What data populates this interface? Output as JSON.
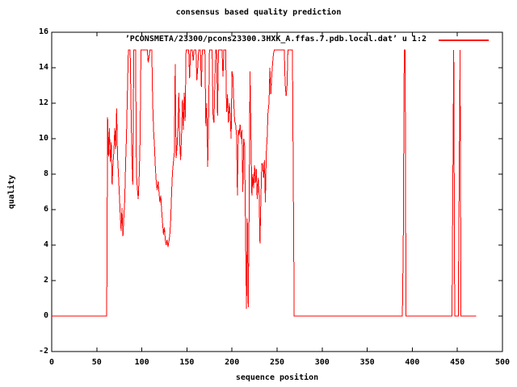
{
  "title": "consensus based quality prediction",
  "legend": {
    "entry": "’PCONSMETA/23300/pcons23300.3HXK_A.ffas.7.pdb.local.dat’ u 1:2",
    "line_color": "#ff0000",
    "position": "top-right-inside"
  },
  "x_axis": {
    "label": "sequence position",
    "min": 0,
    "max": 500,
    "ticks": [
      0,
      50,
      100,
      150,
      200,
      250,
      300,
      350,
      400,
      450,
      500
    ]
  },
  "y_axis": {
    "label": "quality",
    "min": -2,
    "max": 16,
    "ticks": [
      -2,
      0,
      2,
      4,
      6,
      8,
      10,
      12,
      14,
      16
    ]
  },
  "colors": {
    "series": "#ff0000",
    "axis": "#000000",
    "background": "#ffffff",
    "text": "#000000"
  },
  "chart_data": {
    "type": "line",
    "title": "consensus based quality prediction",
    "xlabel": "sequence position",
    "ylabel": "quality",
    "xlim": [
      0,
      500
    ],
    "ylim": [
      -2,
      16
    ],
    "grid": false,
    "legend_position": "top-right-inside",
    "series": [
      {
        "name": "’PCONSMETA/23300/pcons23300.3HXK_A.ffas.7.pdb.local.dat’ u 1:2",
        "color": "#ff0000",
        "points": [
          [
            0,
            0
          ],
          [
            61,
            0
          ],
          [
            62,
            11.2
          ],
          [
            63,
            9
          ],
          [
            64,
            10.6
          ],
          [
            65,
            8.7
          ],
          [
            66,
            9.8
          ],
          [
            67,
            7.4
          ],
          [
            68,
            8.6
          ],
          [
            69,
            9.3
          ],
          [
            70,
            10.6
          ],
          [
            71,
            9.4
          ],
          [
            72,
            11.7
          ],
          [
            73,
            9
          ],
          [
            74,
            8
          ],
          [
            75,
            6.9
          ],
          [
            76,
            5.8
          ],
          [
            77,
            4.8
          ],
          [
            78,
            6.1
          ],
          [
            79,
            4.5
          ],
          [
            80,
            5.6
          ],
          [
            81,
            6.5
          ],
          [
            82,
            8.6
          ],
          [
            83,
            10.2
          ],
          [
            84,
            12.6
          ],
          [
            85,
            15
          ],
          [
            86,
            15
          ],
          [
            87,
            15
          ],
          [
            88,
            11.8
          ],
          [
            89,
            8.9
          ],
          [
            90,
            7.4
          ],
          [
            91,
            15
          ],
          [
            92,
            15
          ],
          [
            93,
            15
          ],
          [
            94,
            8
          ],
          [
            95,
            7.2
          ],
          [
            96,
            6.6
          ],
          [
            97,
            7.9
          ],
          [
            98,
            9.9
          ],
          [
            99,
            15
          ],
          [
            100,
            15
          ],
          [
            101,
            15
          ],
          [
            102,
            15
          ],
          [
            103,
            15
          ],
          [
            104,
            15
          ],
          [
            105,
            15
          ],
          [
            106,
            15
          ],
          [
            107,
            14.3
          ],
          [
            108,
            14.6
          ],
          [
            109,
            15
          ],
          [
            110,
            15
          ],
          [
            111,
            15
          ],
          [
            112,
            12
          ],
          [
            113,
            10.5
          ],
          [
            114,
            9.6
          ],
          [
            115,
            8.4
          ],
          [
            116,
            7.5
          ],
          [
            117,
            7.1
          ],
          [
            118,
            7.6
          ],
          [
            119,
            7
          ],
          [
            120,
            6.4
          ],
          [
            121,
            6.8
          ],
          [
            122,
            5.9
          ],
          [
            123,
            5.2
          ],
          [
            124,
            4.6
          ],
          [
            125,
            5
          ],
          [
            126,
            4.3
          ],
          [
            127,
            4
          ],
          [
            128,
            4.3
          ],
          [
            129,
            3.9
          ],
          [
            130,
            4.2
          ],
          [
            131,
            4.6
          ],
          [
            132,
            5.4
          ],
          [
            133,
            6.9
          ],
          [
            134,
            8.1
          ],
          [
            135,
            8.7
          ],
          [
            136,
            9.2
          ],
          [
            137,
            14.2
          ],
          [
            138,
            8.9
          ],
          [
            139,
            9.5
          ],
          [
            140,
            10.5
          ],
          [
            141,
            12.6
          ],
          [
            142,
            9.8
          ],
          [
            143,
            8.8
          ],
          [
            144,
            10.2
          ],
          [
            145,
            12.2
          ],
          [
            146,
            10.5
          ],
          [
            147,
            12.6
          ],
          [
            148,
            11
          ],
          [
            149,
            15
          ],
          [
            150,
            15
          ],
          [
            151,
            15
          ],
          [
            152,
            15
          ],
          [
            153,
            13.4
          ],
          [
            154,
            15
          ],
          [
            155,
            15
          ],
          [
            156,
            15
          ],
          [
            157,
            14.4
          ],
          [
            158,
            15
          ],
          [
            159,
            15
          ],
          [
            160,
            15
          ],
          [
            161,
            13.3
          ],
          [
            162,
            14
          ],
          [
            163,
            15
          ],
          [
            164,
            15
          ],
          [
            165,
            15
          ],
          [
            166,
            12.9
          ],
          [
            167,
            15
          ],
          [
            168,
            15
          ],
          [
            169,
            15
          ],
          [
            170,
            15
          ],
          [
            171,
            10.7
          ],
          [
            172,
            12
          ],
          [
            173,
            8.4
          ],
          [
            174,
            11
          ],
          [
            175,
            15
          ],
          [
            176,
            15
          ],
          [
            177,
            15
          ],
          [
            178,
            15
          ],
          [
            179,
            11.2
          ],
          [
            180,
            10.9
          ],
          [
            181,
            13.3
          ],
          [
            182,
            15
          ],
          [
            183,
            15
          ],
          [
            184,
            11.3
          ],
          [
            185,
            15
          ],
          [
            186,
            15
          ],
          [
            187,
            15
          ],
          [
            188,
            15
          ],
          [
            189,
            15
          ],
          [
            190,
            13.5
          ],
          [
            191,
            15
          ],
          [
            192,
            15
          ],
          [
            193,
            15
          ],
          [
            194,
            11.5
          ],
          [
            195,
            12.5
          ],
          [
            196,
            10.9
          ],
          [
            197,
            12
          ],
          [
            198,
            11.3
          ],
          [
            199,
            10
          ],
          [
            200,
            13.8
          ],
          [
            201,
            13.5
          ],
          [
            202,
            12
          ],
          [
            203,
            11
          ],
          [
            204,
            10.8
          ],
          [
            205,
            10.2
          ],
          [
            206,
            6.8
          ],
          [
            207,
            10.5
          ],
          [
            208,
            10.2
          ],
          [
            209,
            10.8
          ],
          [
            210,
            10
          ],
          [
            211,
            10.5
          ],
          [
            212,
            7
          ],
          [
            213,
            10
          ],
          [
            214,
            9.6
          ],
          [
            215,
            5
          ],
          [
            216,
            0.4
          ],
          [
            217,
            5.5
          ],
          [
            218,
            0.5
          ],
          [
            219,
            6
          ],
          [
            220,
            13.8
          ],
          [
            221,
            10.4
          ],
          [
            222,
            6.8
          ],
          [
            223,
            8
          ],
          [
            224,
            7.2
          ],
          [
            225,
            8.5
          ],
          [
            226,
            7.5
          ],
          [
            227,
            8.3
          ],
          [
            228,
            6.6
          ],
          [
            229,
            7.8
          ],
          [
            230,
            7
          ],
          [
            231,
            4.1
          ],
          [
            232,
            6.5
          ],
          [
            233,
            8.6
          ],
          [
            234,
            8.6
          ],
          [
            235,
            7.8
          ],
          [
            236,
            8.8
          ],
          [
            237,
            6.4
          ],
          [
            238,
            9.2
          ],
          [
            239,
            10
          ],
          [
            240,
            11.5
          ],
          [
            241,
            12
          ],
          [
            242,
            14
          ],
          [
            243,
            12.5
          ],
          [
            244,
            13.5
          ],
          [
            245,
            14.2
          ],
          [
            246,
            14.8
          ],
          [
            247,
            15
          ],
          [
            248,
            15
          ],
          [
            249,
            15
          ],
          [
            250,
            15
          ],
          [
            251,
            15
          ],
          [
            252,
            15
          ],
          [
            253,
            15
          ],
          [
            254,
            15
          ],
          [
            255,
            15
          ],
          [
            256,
            15
          ],
          [
            257,
            15
          ],
          [
            258,
            15
          ],
          [
            259,
            13.1
          ],
          [
            260,
            12.4
          ],
          [
            261,
            13
          ],
          [
            262,
            15
          ],
          [
            263,
            15
          ],
          [
            264,
            15
          ],
          [
            265,
            15
          ],
          [
            266,
            15
          ],
          [
            267,
            15
          ],
          [
            268,
            7.5
          ],
          [
            269,
            0
          ],
          [
            388,
            0
          ],
          [
            389,
            0
          ],
          [
            390,
            4
          ],
          [
            391,
            15
          ],
          [
            392,
            15
          ],
          [
            393,
            0
          ],
          [
            444,
            0
          ],
          [
            445,
            7.4
          ],
          [
            446,
            15
          ],
          [
            447,
            0
          ],
          [
            451,
            0
          ],
          [
            452,
            7.4
          ],
          [
            453,
            15
          ],
          [
            454,
            0
          ],
          [
            471,
            0
          ]
        ]
      }
    ]
  }
}
